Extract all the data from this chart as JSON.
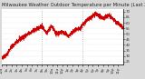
{
  "title": "Milwaukee Weather Outdoor Temperature per Minute (Last 24 Hours)",
  "background_color": "#d8d8d8",
  "plot_background": "#ffffff",
  "line_color": "#cc0000",
  "ylim": [
    22,
    72
  ],
  "yticks": [
    25,
    30,
    35,
    40,
    45,
    50,
    55,
    60,
    65,
    70
  ],
  "num_points": 1440,
  "vline_x": [
    480,
    960
  ],
  "vline_color": "#999999",
  "title_fontsize": 3.8,
  "tick_fontsize": 2.8
}
